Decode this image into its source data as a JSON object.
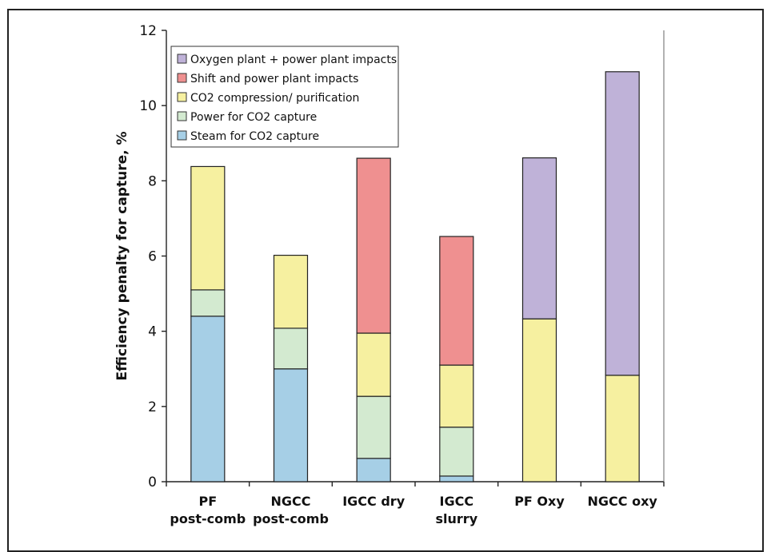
{
  "chart_data": {
    "type": "bar",
    "stacked": true,
    "categories": [
      [
        "PF",
        "post-comb"
      ],
      [
        "NGCC",
        "post-comb"
      ],
      [
        "IGCC   dry"
      ],
      [
        "IGCC",
        "slurry"
      ],
      [
        "PF Oxy"
      ],
      [
        "NGCC oxy"
      ]
    ],
    "series": [
      {
        "name": "Steam for CO2 capture",
        "color": "#a6cfe6",
        "values": [
          4.4,
          3.0,
          0.62,
          0.15,
          0,
          0
        ]
      },
      {
        "name": "Power for CO2 capture",
        "color": "#d3ead0",
        "values": [
          0.7,
          1.08,
          1.65,
          1.3,
          0,
          0
        ]
      },
      {
        "name": "CO2 compression/ purification",
        "color": "#f6f0a0",
        "values": [
          3.28,
          1.94,
          1.68,
          1.65,
          4.33,
          2.83
        ]
      },
      {
        "name": "Shift and power plant impacts",
        "color": "#ef9090",
        "values": [
          0,
          0,
          4.65,
          3.42,
          0,
          0
        ]
      },
      {
        "name": "Oxygen plant + power plant impacts",
        "color": "#bfb2d8",
        "values": [
          0,
          0,
          0,
          0,
          4.28,
          8.07
        ]
      }
    ],
    "legend_order": [
      4,
      3,
      2,
      1,
      0
    ],
    "ylabel": "Efficiency penalty for capture, %",
    "xlabel": "",
    "ylim": [
      0,
      12
    ],
    "yticks": [
      0,
      2,
      4,
      6,
      8,
      10,
      12
    ],
    "grid": false,
    "legend_position": "top-left"
  }
}
